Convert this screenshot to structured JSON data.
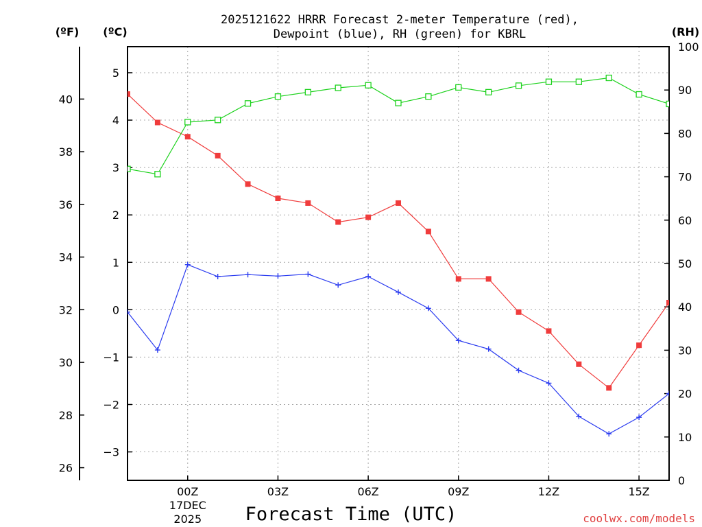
{
  "chart_data": {
    "type": "line",
    "title_lines": [
      "2025121622 HRRR Forecast 2-meter Temperature (red),",
      "Dewpoint (blue), RH (green) for KBRL"
    ],
    "xlabel": "Forecast Time (UTC)",
    "credit": "coolwx.com/models",
    "units": {
      "fahrenheit": "(ºF)",
      "celsius": "(ºC)",
      "rh": "(RH)"
    },
    "x": [
      22,
      23,
      24,
      25,
      26,
      27,
      28,
      29,
      30,
      31,
      32,
      33,
      34,
      35,
      36,
      37,
      38,
      39,
      40
    ],
    "xlim": [
      22,
      40
    ],
    "x_ticks": [
      {
        "x": 24,
        "label": "00Z",
        "sub1": "17DEC",
        "sub2": "2025"
      },
      {
        "x": 27,
        "label": "03Z"
      },
      {
        "x": 30,
        "label": "06Z"
      },
      {
        "x": 33,
        "label": "09Z"
      },
      {
        "x": 36,
        "label": "12Z"
      },
      {
        "x": 39,
        "label": "15Z"
      }
    ],
    "celsius_axis": {
      "ylim": [
        -3.6,
        5.55
      ],
      "ticks": [
        5,
        4,
        3,
        2,
        1,
        0,
        -1,
        -2,
        -3
      ],
      "tick_labels": [
        "5",
        "4",
        "3",
        "2",
        "1",
        "0",
        "−1",
        "−2",
        "−3"
      ]
    },
    "fahrenheit_axis": {
      "ylim": [
        25.52,
        41.99
      ],
      "ticks": [
        40,
        38,
        36,
        34,
        32,
        30,
        28,
        26
      ]
    },
    "rh_axis": {
      "ylim": [
        0,
        100
      ],
      "ticks": [
        100,
        90,
        80,
        70,
        60,
        50,
        40,
        30,
        20,
        10,
        0
      ]
    },
    "series": [
      {
        "name": "2-meter Temperature",
        "axis": "celsius",
        "color": "#f03c3c",
        "marker": "filled-square",
        "values": [
          4.55,
          3.95,
          3.65,
          3.25,
          2.65,
          2.35,
          2.25,
          1.85,
          1.95,
          2.25,
          1.65,
          0.65,
          0.65,
          -0.05,
          -0.45,
          -1.15,
          -1.65,
          -0.75,
          0.15
        ]
      },
      {
        "name": "Dewpoint",
        "axis": "celsius",
        "color": "#2b3cf0",
        "marker": "plus",
        "values": [
          -0.05,
          -0.85,
          0.95,
          0.7,
          0.74,
          0.71,
          0.75,
          0.52,
          0.7,
          0.37,
          0.03,
          -0.65,
          -0.83,
          -1.28,
          -1.55,
          -2.25,
          -2.62,
          -2.27,
          -1.77
        ]
      },
      {
        "name": "RH",
        "axis": "rh",
        "color": "#1ed21e",
        "marker": "open-square",
        "values": [
          71.8,
          70.6,
          82.6,
          83.1,
          86.9,
          88.5,
          89.5,
          90.5,
          91.1,
          87.0,
          88.5,
          90.6,
          89.5,
          91.0,
          91.9,
          91.9,
          92.8,
          89.0,
          86.8
        ]
      }
    ]
  }
}
